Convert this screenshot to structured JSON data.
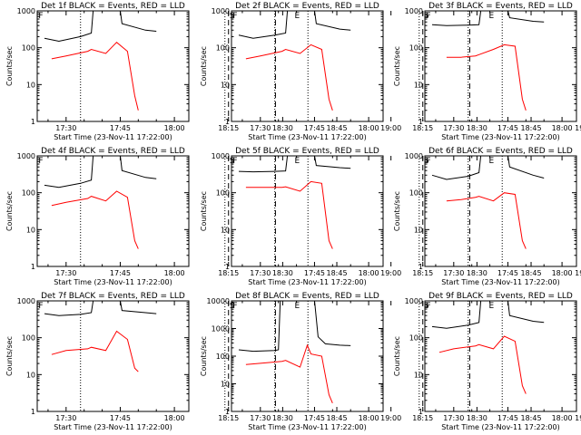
{
  "figure": {
    "xlabel": "Start Time (23-Nov-11 17:22:00)",
    "ylabel": "Counts/sec",
    "x_tick_labels": [
      "17:30",
      "17:45",
      "18:00",
      "18:15",
      "18:30",
      "18:45",
      "19:00"
    ],
    "xlim_minutes_after_1700": [
      22,
      64
    ],
    "colors": {
      "events": "#000000",
      "lld": "#ff0000",
      "axis": "#000000"
    }
  },
  "chart_data": [
    {
      "type": "line",
      "title": "Det 1f BLACK = Events, RED = LLD",
      "x_ticks": [
        "17:30",
        "17:45",
        "18:00",
        "18:15",
        "18:30",
        "18:45",
        "19:00"
      ],
      "y_ticks": [
        "1",
        "10",
        "100",
        "1000"
      ],
      "ylim": [
        1,
        1000
      ],
      "yscale": "log",
      "markers": [
        "F",
        "S",
        "E"
      ],
      "marker_times": [
        "17:23",
        "18:16",
        "18:34"
      ],
      "dashed_lines": [
        "18:15",
        "18:28"
      ],
      "dotted_lines": [
        "17:34",
        "18:14",
        "18:37"
      ],
      "series": [
        {
          "values": [
            [
              2,
              180
            ],
            [
              6,
              150
            ],
            [
              12,
              200
            ],
            [
              15,
              250
            ],
            [
              15.5,
              1000
            ],
            [
              23,
              1000
            ],
            [
              23.5,
              450
            ],
            [
              30,
              300
            ],
            [
              33,
              280
            ]
          ]
        },
        {
          "values": [
            [
              4,
              50
            ],
            [
              8,
              60
            ],
            [
              14,
              80
            ],
            [
              15,
              90
            ],
            [
              19,
              70
            ],
            [
              22,
              140
            ],
            [
              25,
              80
            ],
            [
              27,
              5
            ],
            [
              28,
              2
            ]
          ]
        }
      ]
    },
    {
      "type": "line",
      "title": "Det 2f BLACK = Events, RED = LLD",
      "x_ticks": [
        "17:30",
        "17:45",
        "18:00",
        "18:15",
        "18:30",
        "18:45",
        "19:00"
      ],
      "y_ticks": [
        "1",
        "10",
        "100",
        "1000"
      ],
      "ylim": [
        1,
        1000
      ],
      "yscale": "log",
      "markers": [
        "F",
        "S",
        "E"
      ],
      "marker_times": [
        "17:23",
        "18:16",
        "18:34"
      ],
      "dashed_lines": [
        "18:15",
        "18:28"
      ],
      "dotted_lines": [
        "17:34",
        "18:14",
        "18:37"
      ],
      "series": [
        {
          "values": [
            [
              2,
              220
            ],
            [
              6,
              180
            ],
            [
              12,
              220
            ],
            [
              15,
              250
            ],
            [
              15.5,
              1000
            ],
            [
              23,
              1000
            ],
            [
              23.5,
              450
            ],
            [
              30,
              320
            ],
            [
              33,
              300
            ]
          ]
        },
        {
          "values": [
            [
              4,
              50
            ],
            [
              8,
              60
            ],
            [
              14,
              80
            ],
            [
              15,
              90
            ],
            [
              19,
              70
            ],
            [
              22,
              120
            ],
            [
              25,
              90
            ],
            [
              27,
              4
            ],
            [
              28,
              2
            ]
          ]
        }
      ]
    },
    {
      "type": "line",
      "title": "Det 3f BLACK = Events, RED = LLD",
      "x_ticks": [
        "17:30",
        "17:45",
        "18:00",
        "18:15",
        "18:30",
        "18:45",
        "19:00"
      ],
      "y_ticks": [
        "1",
        "10",
        "100",
        "1000"
      ],
      "ylim": [
        1,
        1000
      ],
      "yscale": "log",
      "markers": [
        "F",
        "S",
        "E"
      ],
      "marker_times": [
        "17:23",
        "18:16",
        "18:34"
      ],
      "dashed_lines": [
        "18:15",
        "18:28"
      ],
      "dotted_lines": [
        "17:34",
        "18:14",
        "18:37"
      ],
      "series": [
        {
          "values": [
            [
              2,
              420
            ],
            [
              6,
              400
            ],
            [
              12,
              410
            ],
            [
              15,
              420
            ],
            [
              15.5,
              1000
            ],
            [
              23,
              1000
            ],
            [
              23.5,
              650
            ],
            [
              30,
              520
            ],
            [
              33,
              500
            ]
          ]
        },
        {
          "values": [
            [
              6,
              55
            ],
            [
              10,
              55
            ],
            [
              14,
              60
            ],
            [
              15,
              65
            ],
            [
              19,
              90
            ],
            [
              22,
              120
            ],
            [
              25,
              110
            ],
            [
              27,
              4
            ],
            [
              28,
              2
            ]
          ]
        }
      ]
    },
    {
      "type": "line",
      "title": "Det 4f BLACK = Events, RED = LLD",
      "x_ticks": [
        "17:30",
        "17:45",
        "18:00",
        "18:15",
        "18:30",
        "18:45",
        "19:00"
      ],
      "y_ticks": [
        "1",
        "10",
        "100",
        "1000"
      ],
      "ylim": [
        1,
        1000
      ],
      "yscale": "log",
      "markers": [
        "F",
        "S",
        "E"
      ],
      "marker_times": [
        "17:23",
        "18:16",
        "18:34"
      ],
      "dashed_lines": [
        "18:15",
        "18:28"
      ],
      "dotted_lines": [
        "17:34",
        "18:14",
        "18:37"
      ],
      "series": [
        {
          "values": [
            [
              2,
              160
            ],
            [
              6,
              140
            ],
            [
              12,
              180
            ],
            [
              15,
              220
            ],
            [
              15.5,
              1000
            ],
            [
              23,
              1000
            ],
            [
              23.5,
              400
            ],
            [
              30,
              260
            ],
            [
              33,
              240
            ]
          ]
        },
        {
          "values": [
            [
              4,
              45
            ],
            [
              8,
              55
            ],
            [
              14,
              70
            ],
            [
              15,
              80
            ],
            [
              19,
              60
            ],
            [
              22,
              110
            ],
            [
              25,
              75
            ],
            [
              27,
              5
            ],
            [
              28,
              3
            ]
          ]
        }
      ]
    },
    {
      "type": "line",
      "title": "Det 5f BLACK = Events, RED = LLD",
      "x_ticks": [
        "17:30",
        "17:45",
        "18:00",
        "18:15",
        "18:30",
        "18:45",
        "19:00"
      ],
      "y_ticks": [
        "1",
        "10",
        "100",
        "1000"
      ],
      "ylim": [
        1,
        1000
      ],
      "yscale": "log",
      "markers": [
        "F",
        "S",
        "E"
      ],
      "marker_times": [
        "17:23",
        "18:16",
        "18:34"
      ],
      "dashed_lines": [
        "18:15",
        "18:28"
      ],
      "dotted_lines": [
        "17:34",
        "18:14",
        "18:37"
      ],
      "series": [
        {
          "values": [
            [
              2,
              380
            ],
            [
              6,
              370
            ],
            [
              12,
              380
            ],
            [
              15,
              390
            ],
            [
              15.5,
              1000
            ],
            [
              23,
              1000
            ],
            [
              23.5,
              550
            ],
            [
              30,
              480
            ],
            [
              33,
              460
            ]
          ]
        },
        {
          "values": [
            [
              4,
              140
            ],
            [
              8,
              140
            ],
            [
              14,
              140
            ],
            [
              15,
              145
            ],
            [
              19,
              110
            ],
            [
              22,
              200
            ],
            [
              25,
              180
            ],
            [
              27,
              5
            ],
            [
              28,
              3
            ]
          ]
        }
      ]
    },
    {
      "type": "line",
      "title": "Det 6f BLACK = Events, RED = LLD",
      "x_ticks": [
        "17:30",
        "17:45",
        "18:00",
        "18:15",
        "18:30",
        "18:45",
        "19:00"
      ],
      "y_ticks": [
        "1",
        "10",
        "100",
        "1000"
      ],
      "ylim": [
        1,
        1000
      ],
      "yscale": "log",
      "markers": [
        "F",
        "S",
        "E"
      ],
      "marker_times": [
        "17:23",
        "18:16",
        "18:34"
      ],
      "dashed_lines": [
        "18:15",
        "18:28"
      ],
      "dotted_lines": [
        "17:34",
        "18:14",
        "18:37"
      ],
      "series": [
        {
          "values": [
            [
              2,
              300
            ],
            [
              6,
              230
            ],
            [
              12,
              280
            ],
            [
              15,
              350
            ],
            [
              15.5,
              1000
            ],
            [
              23,
              1000
            ],
            [
              23.5,
              500
            ],
            [
              30,
              300
            ],
            [
              33,
              250
            ]
          ]
        },
        {
          "values": [
            [
              6,
              60
            ],
            [
              10,
              65
            ],
            [
              14,
              75
            ],
            [
              15,
              80
            ],
            [
              19,
              60
            ],
            [
              22,
              100
            ],
            [
              25,
              90
            ],
            [
              27,
              5
            ],
            [
              28,
              3
            ]
          ]
        }
      ]
    },
    {
      "type": "line",
      "title": "Det 7f BLACK = Events, RED = LLD",
      "x_ticks": [
        "17:30",
        "17:45",
        "18:00",
        "18:15",
        "18:30",
        "18:45",
        "19:00"
      ],
      "y_ticks": [
        "1",
        "10",
        "100",
        "1000"
      ],
      "ylim": [
        1,
        1000
      ],
      "yscale": "log",
      "markers": [
        "F",
        "S",
        "E"
      ],
      "marker_times": [
        "17:23",
        "18:16",
        "18:34"
      ],
      "dashed_lines": [
        "18:15",
        "18:28"
      ],
      "dotted_lines": [
        "17:34",
        "18:14",
        "18:37"
      ],
      "series": [
        {
          "values": [
            [
              2,
              450
            ],
            [
              6,
              400
            ],
            [
              12,
              430
            ],
            [
              15,
              480
            ],
            [
              15.5,
              1000
            ],
            [
              23,
              1000
            ],
            [
              23.5,
              550
            ],
            [
              30,
              480
            ],
            [
              33,
              450
            ]
          ]
        },
        {
          "values": [
            [
              4,
              35
            ],
            [
              8,
              45
            ],
            [
              14,
              50
            ],
            [
              15,
              55
            ],
            [
              19,
              45
            ],
            [
              22,
              150
            ],
            [
              25,
              90
            ],
            [
              27,
              15
            ],
            [
              28,
              12
            ]
          ]
        }
      ]
    },
    {
      "type": "line",
      "title": "Det 8f BLACK = Events, RED = LLD",
      "x_ticks": [
        "17:30",
        "17:45",
        "18:00",
        "18:15",
        "18:30",
        "18:45",
        "19:00"
      ],
      "y_ticks": [
        "1",
        "10",
        "100",
        "1000",
        "10000"
      ],
      "ylim": [
        1,
        10000
      ],
      "yscale": "log",
      "markers": [
        "F",
        "S",
        "E"
      ],
      "marker_times": [
        "17:23",
        "18:16",
        "18:34"
      ],
      "dashed_lines": [
        "18:15",
        "18:28"
      ],
      "dotted_lines": [
        "17:34",
        "18:14",
        "18:37"
      ],
      "series": [
        {
          "values": [
            [
              2,
              170
            ],
            [
              6,
              150
            ],
            [
              12,
              160
            ],
            [
              13,
              170
            ],
            [
              13.5,
              10000
            ],
            [
              23,
              10000
            ],
            [
              24,
              500
            ],
            [
              26,
              280
            ],
            [
              30,
              250
            ],
            [
              33,
              240
            ]
          ]
        },
        {
          "values": [
            [
              4,
              50
            ],
            [
              8,
              55
            ],
            [
              14,
              65
            ],
            [
              15,
              70
            ],
            [
              19,
              40
            ],
            [
              21,
              250
            ],
            [
              22,
              120
            ],
            [
              25,
              100
            ],
            [
              26,
              20
            ],
            [
              27,
              4
            ],
            [
              28,
              2
            ]
          ]
        }
      ]
    },
    {
      "type": "line",
      "title": "Det 9f BLACK = Events, RED = LLD",
      "x_ticks": [
        "17:30",
        "17:45",
        "18:00",
        "18:15",
        "18:30",
        "18:45",
        "19:00"
      ],
      "y_ticks": [
        "1",
        "10",
        "100",
        "1000"
      ],
      "ylim": [
        1,
        1000
      ],
      "yscale": "log",
      "markers": [
        "F",
        "S",
        "E"
      ],
      "marker_times": [
        "17:23",
        "18:16",
        "18:34"
      ],
      "dashed_lines": [
        "18:15",
        "18:28"
      ],
      "dotted_lines": [
        "17:34",
        "18:14",
        "18:37"
      ],
      "series": [
        {
          "values": [
            [
              2,
              200
            ],
            [
              6,
              180
            ],
            [
              12,
              220
            ],
            [
              15,
              260
            ],
            [
              15.5,
              1000
            ],
            [
              23,
              1000
            ],
            [
              23.5,
              400
            ],
            [
              30,
              280
            ],
            [
              33,
              260
            ]
          ]
        },
        {
          "values": [
            [
              4,
              40
            ],
            [
              8,
              50
            ],
            [
              14,
              60
            ],
            [
              15,
              65
            ],
            [
              19,
              50
            ],
            [
              22,
              110
            ],
            [
              25,
              80
            ],
            [
              27,
              5
            ],
            [
              28,
              3
            ]
          ]
        }
      ]
    }
  ]
}
